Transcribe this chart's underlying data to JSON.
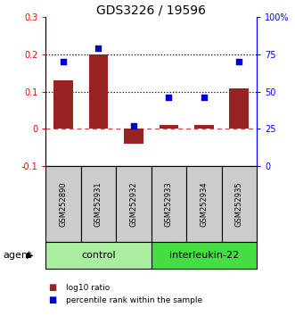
{
  "title": "GDS3226 / 19596",
  "samples": [
    "GSM252890",
    "GSM252931",
    "GSM252932",
    "GSM252933",
    "GSM252934",
    "GSM252935"
  ],
  "log10_ratio": [
    0.13,
    0.2,
    -0.04,
    0.01,
    0.01,
    0.11
  ],
  "percentile_rank": [
    70,
    79,
    27,
    46,
    46,
    70
  ],
  "groups": [
    {
      "label": "control",
      "indices": [
        0,
        1,
        2
      ],
      "color": "#90EE90"
    },
    {
      "label": "interleukin-22",
      "indices": [
        3,
        4,
        5
      ],
      "color": "#32CD32"
    }
  ],
  "ylim_left": [
    -0.1,
    0.3
  ],
  "ylim_right": [
    0,
    100
  ],
  "yticks_left": [
    -0.1,
    0.0,
    0.1,
    0.2,
    0.3
  ],
  "yticks_right": [
    0,
    25,
    50,
    75,
    100
  ],
  "ytick_labels_left": [
    "-0.1",
    "0",
    "0.1",
    "0.2",
    "0.3"
  ],
  "ytick_labels_right": [
    "0",
    "25",
    "50",
    "75",
    "100%"
  ],
  "hlines_dotted": [
    0.1,
    0.2
  ],
  "hline_dashed_color": "#CC4444",
  "bar_color": "#992222",
  "dot_color": "#0000CC",
  "bar_width": 0.55,
  "legend_labels": [
    "log10 ratio",
    "percentile rank within the sample"
  ],
  "agent_label": "agent",
  "control_color": "#AAEEA0",
  "il22_color": "#44DD44"
}
